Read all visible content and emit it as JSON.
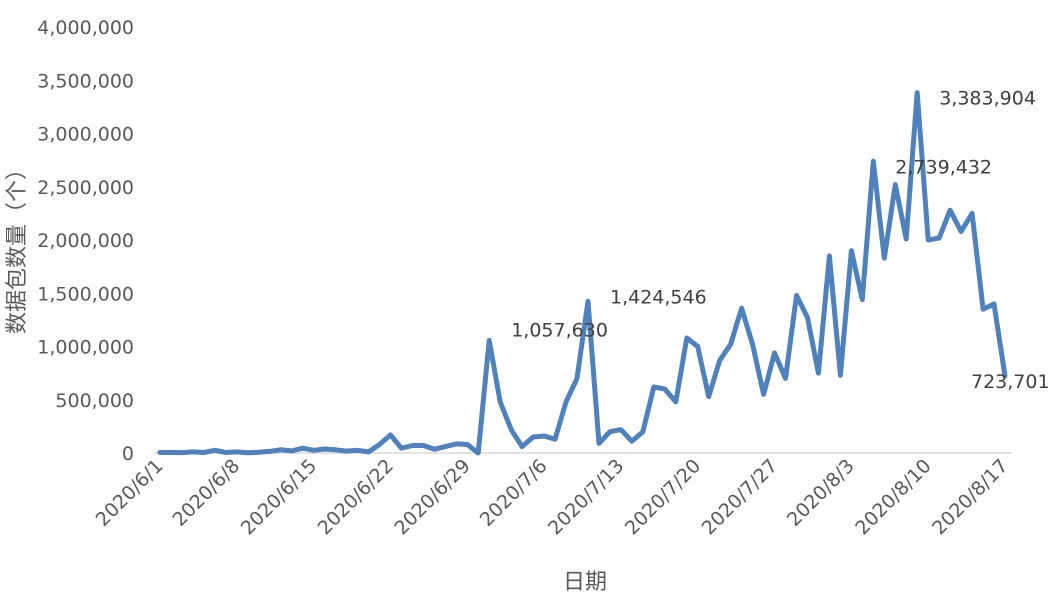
{
  "chart_data": {
    "type": "line",
    "xlabel": "日期",
    "ylabel": "数据包数量（个）",
    "ylim": [
      0,
      4000000
    ],
    "y_ticks": [
      0,
      500000,
      1000000,
      1500000,
      2000000,
      2500000,
      3000000,
      3500000,
      4000000
    ],
    "y_tick_labels": [
      "0",
      "500,000",
      "1,000,000",
      "1,500,000",
      "2,000,000",
      "2,500,000",
      "3,000,000",
      "3,500,000",
      "4,000,000"
    ],
    "x_tick_labels": [
      "2020/6/1",
      "2020/6/8",
      "2020/6/15",
      "2020/6/22",
      "2020/6/29",
      "2020/7/6",
      "2020/7/13",
      "2020/7/20",
      "2020/7/27",
      "2020/8/3",
      "2020/8/10",
      "2020/8/17"
    ],
    "grid": false,
    "legend": "none",
    "color": "#4f81bd",
    "series": [
      {
        "x_start": "2020/6/1",
        "values": [
          5000,
          5000,
          4000,
          10000,
          5000,
          25000,
          5000,
          10000,
          3000,
          7000,
          15000,
          30000,
          20000,
          45000,
          25000,
          38000,
          30000,
          18000,
          25000,
          10000,
          80000,
          170000,
          45000,
          70000,
          70000,
          35000,
          60000,
          85000,
          80000,
          0,
          1057630,
          480000,
          220000,
          60000,
          150000,
          160000,
          130000,
          480000,
          700000,
          1424546,
          90000,
          200000,
          220000,
          110000,
          200000,
          620000,
          600000,
          480000,
          1080000,
          1000000,
          530000,
          870000,
          1020000,
          1360000,
          1020000,
          550000,
          940000,
          700000,
          1480000,
          1270000,
          750000,
          1850000,
          730000,
          1900000,
          1440000,
          2739432,
          1830000,
          2520000,
          2010000,
          3383904,
          2000000,
          2020000,
          2280000,
          2080000,
          2250000,
          1350000,
          1400000,
          723701
        ]
      }
    ],
    "data_labels": [
      {
        "date": "2020/7/1",
        "text": "1,057,630"
      },
      {
        "date": "2020/7/10",
        "text": "1,424,546"
      },
      {
        "date": "2020/8/5",
        "text": "2,739,432"
      },
      {
        "date": "2020/8/9",
        "text": "3,383,904"
      },
      {
        "date": "2020/8/17",
        "text": "723,701"
      }
    ]
  }
}
